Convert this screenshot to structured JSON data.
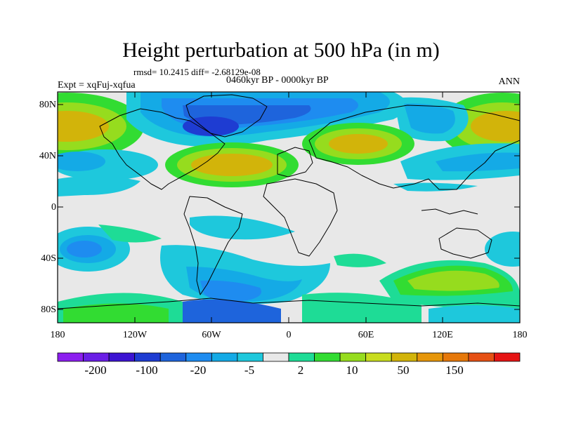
{
  "title": "Height perturbation at 500 hPa (in m)",
  "stats": "rmsd= 10.2415 diff= -2.68129e-08",
  "period": "0460kyr BP - 0000kyr BP",
  "experiment": "Expt = xqFuj-xqfua",
  "season": "ANN",
  "lat_labels": [
    "80N",
    "40N",
    "0",
    "40S",
    "80S"
  ],
  "lon_labels": [
    "180",
    "120W",
    "60W",
    "0",
    "60E",
    "120E",
    "180"
  ],
  "colorbar": {
    "colors": [
      "#8c1eef",
      "#6a1ee6",
      "#3c14d2",
      "#1e3cd2",
      "#1e64dc",
      "#1e8cf0",
      "#14aae6",
      "#1ec8dc",
      "#e8e8e8",
      "#1edc96",
      "#32dc32",
      "#96dc1e",
      "#c8dc1e",
      "#d2b40a",
      "#e6960a",
      "#e6780a",
      "#e65014",
      "#e61414"
    ],
    "labels": [
      "-200",
      "-100",
      "-20",
      "-5",
      "2",
      "10",
      "50",
      "150"
    ]
  }
}
